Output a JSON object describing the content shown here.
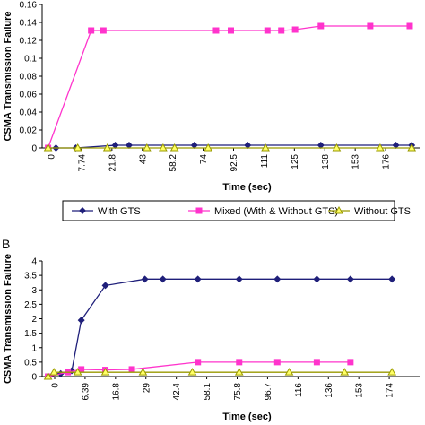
{
  "legend": {
    "entries": [
      {
        "label": "With GTS",
        "color": "#1f1f7a",
        "marker": "diamond"
      },
      {
        "label": "Mixed (With & Without GTS)",
        "color": "#ff33cc",
        "marker": "square"
      },
      {
        "label": "Without GTS",
        "color": "#9a9a00",
        "marker": "triangle"
      }
    ]
  },
  "chart_data": [
    {
      "type": "line",
      "panel_label": "",
      "xlabel": "Time (sec)",
      "ylabel": "CSMA Transmission Failure",
      "ylim": [
        0,
        0.16
      ],
      "yticks": [
        "0",
        "0.02",
        "0.04",
        "0.06",
        "0.08",
        "0.1",
        "0.12",
        "0.14",
        "0.16"
      ],
      "xticks": [
        "0",
        "7.74",
        "21.8",
        "43",
        "58.2",
        "74",
        "92.5",
        "111",
        "125",
        "138",
        "153",
        "176"
      ],
      "xlim": [
        -3,
        188
      ],
      "series": [
        {
          "name": "With GTS",
          "color": "#1f1f7a",
          "marker": "diamond",
          "x": [
            0,
            4,
            14,
            34,
            41,
            74,
            101,
            138,
            176,
            184
          ],
          "y": [
            0,
            0,
            0,
            0.003,
            0.003,
            0.003,
            0.003,
            0.003,
            0.003,
            0.003
          ]
        },
        {
          "name": "Mixed (With & Without GTS)",
          "color": "#ff33cc",
          "marker": "square",
          "x": [
            0,
            21.8,
            28,
            85,
            92.5,
            111,
            118,
            125,
            138,
            163,
            183
          ],
          "y": [
            0,
            0.131,
            0.131,
            0.131,
            0.131,
            0.131,
            0.131,
            0.132,
            0.136,
            0.136,
            0.136
          ]
        },
        {
          "name": "Without GTS",
          "color": "#9a9a00",
          "marker": "triangle",
          "x": [
            0,
            15,
            30,
            50,
            58.2,
            64,
            81,
            110,
            146,
            168,
            184
          ],
          "y": [
            0,
            0,
            0,
            0,
            0,
            0,
            0,
            0,
            0,
            0,
            0
          ]
        }
      ]
    },
    {
      "type": "line",
      "panel_label": "B",
      "xlabel": "Time (sec)",
      "ylabel": "CSMA Transmission Failure",
      "ylim": [
        0,
        4
      ],
      "yticks": [
        "0",
        "0.5",
        "1",
        "1.5",
        "2",
        "2.5",
        "3",
        "3.5",
        "4"
      ],
      "xticks": [
        "0",
        "6.39",
        "16.8",
        "29",
        "42.4",
        "58.1",
        "75.8",
        "96.7",
        "116",
        "136",
        "153",
        "174"
      ],
      "xlim": [
        -3,
        188
      ],
      "series": [
        {
          "name": "With GTS",
          "color": "#1f1f7a",
          "marker": "diamond",
          "x": [
            0,
            6.39,
            12,
            16.8,
            29,
            49,
            58.1,
            75.8,
            96.7,
            116,
            136,
            153,
            174
          ],
          "y": [
            0,
            0.1,
            0.2,
            1.95,
            3.15,
            3.37,
            3.37,
            3.37,
            3.37,
            3.37,
            3.37,
            3.37,
            3.37
          ]
        },
        {
          "name": "Mixed (With & Without GTS)",
          "color": "#ff33cc",
          "marker": "square",
          "x": [
            0,
            10,
            16.8,
            29,
            42.4,
            75.8,
            96.7,
            116,
            136,
            153
          ],
          "y": [
            0,
            0.15,
            0.25,
            0.23,
            0.25,
            0.5,
            0.5,
            0.5,
            0.5,
            0.5
          ]
        },
        {
          "name": "Without GTS",
          "color": "#9a9a00",
          "marker": "triangle",
          "x": [
            0,
            3,
            15,
            29,
            48,
            73,
            96.7,
            122,
            150,
            174
          ],
          "y": [
            0,
            0.15,
            0.15,
            0.15,
            0.15,
            0.15,
            0.15,
            0.15,
            0.15,
            0.15
          ]
        }
      ]
    }
  ]
}
